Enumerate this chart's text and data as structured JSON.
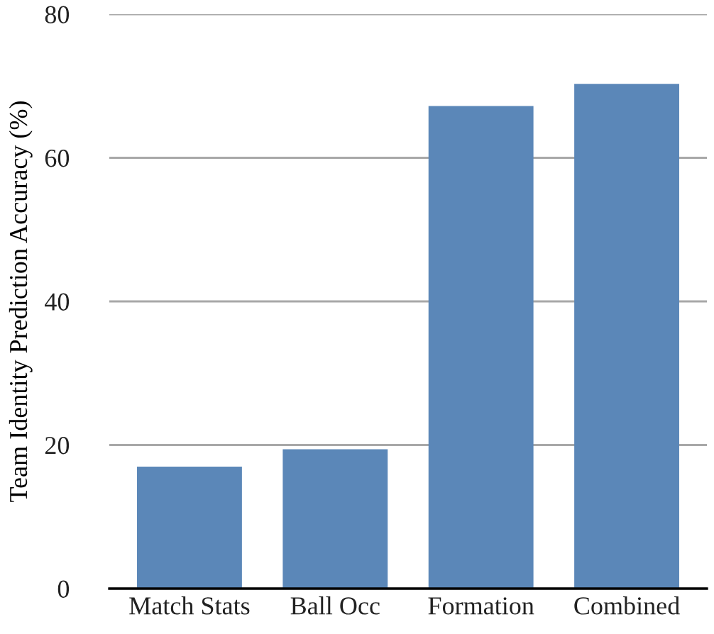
{
  "chart_data": {
    "type": "bar",
    "ylabel": "Team Identity Prediction Accuracy (%)",
    "categories": [
      "Match Stats",
      "Ball Occ",
      "Formation",
      "Combined"
    ],
    "values": [
      17.0,
      19.4,
      67.2,
      70.3
    ],
    "color": "#5b87b8",
    "ylim": [
      0,
      80
    ],
    "yticks": [
      0,
      20,
      40,
      60,
      80
    ],
    "grid": "y"
  }
}
